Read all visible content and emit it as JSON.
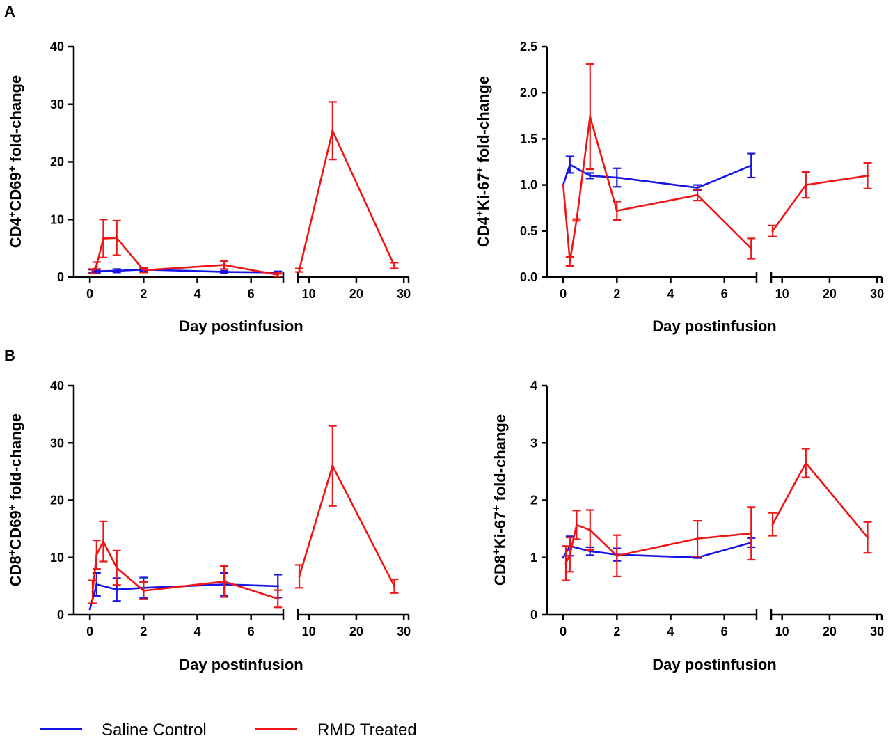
{
  "legend": {
    "series": [
      {
        "name": "Saline Control",
        "color": "#1414e6"
      },
      {
        "name": "RMD Treated",
        "color": "#f01414"
      }
    ]
  },
  "chart_data": [
    {
      "panel": "A",
      "type": "line",
      "ylabel_main": "CD4",
      "ylabel_parts": [
        [
          "CD4",
          ""
        ],
        [
          "+",
          "sup"
        ],
        [
          "CD69",
          ""
        ],
        [
          "+",
          "sup"
        ],
        [
          " fold-change",
          ""
        ]
      ],
      "xlabel": "Day postinfusion",
      "ylim": [
        0,
        40
      ],
      "yticks": [
        "0",
        "10",
        "20",
        "30",
        "40"
      ],
      "ytick_values": [
        0,
        10,
        20,
        30,
        40
      ],
      "x_segments": [
        {
          "range": [
            -0.6,
            7.2
          ],
          "ticks": [
            0,
            2,
            4,
            6
          ],
          "tick_labels": [
            "0",
            "2",
            "4",
            "6"
          ]
        },
        {
          "range": [
            7.7,
            31
          ],
          "ticks": [
            10,
            20,
            30
          ],
          "tick_labels": [
            "10",
            "20",
            "30"
          ]
        }
      ],
      "series": [
        {
          "name": "Saline Control",
          "color": "#1414e6",
          "lines": [
            {
              "x": [
                0.1,
                0.25,
                1,
                2,
                5,
                7
              ],
              "y": [
                1.0,
                1.0,
                1.1,
                1.3,
                0.9,
                0.8
              ],
              "err": [
                0.3,
                0.3,
                0.3,
                0.3,
                0.2,
                0.2
              ]
            }
          ]
        },
        {
          "name": "RMD Treated",
          "color": "#f01414",
          "lines": [
            {
              "x": [
                0.1,
                0.25,
                0.5,
                1,
                2,
                5,
                7
              ],
              "y": [
                1.0,
                2.0,
                6.7,
                6.8,
                1.2,
                2.1,
                0.4
              ],
              "err": [
                0.4,
                0.6,
                3.3,
                3.0,
                0.4,
                0.7,
                0.3
              ]
            },
            {
              "x": [
                8,
                15,
                28
              ],
              "y": [
                1.2,
                25.4,
                2.0
              ],
              "err": [
                0.3,
                5.0,
                0.5
              ]
            }
          ]
        }
      ]
    },
    {
      "panel": "",
      "type": "line",
      "ylabel_parts": [
        [
          "CD4",
          ""
        ],
        [
          "+",
          "sup"
        ],
        [
          "Ki-67",
          ""
        ],
        [
          "+",
          "sup"
        ],
        [
          " fold-change",
          ""
        ]
      ],
      "xlabel": "Day postinfusion",
      "ylim": [
        0,
        2.5
      ],
      "yticks": [
        "0.0",
        "0.5",
        "1.0",
        "1.5",
        "2.0",
        "2.5"
      ],
      "ytick_values": [
        0,
        0.5,
        1.0,
        1.5,
        2.0,
        2.5
      ],
      "x_segments": [
        {
          "range": [
            -0.6,
            7.2
          ],
          "ticks": [
            0,
            2,
            4,
            6
          ],
          "tick_labels": [
            "0",
            "2",
            "4",
            "6"
          ]
        },
        {
          "range": [
            7.7,
            31
          ],
          "ticks": [
            10,
            20,
            30
          ],
          "tick_labels": [
            "10",
            "20",
            "30"
          ]
        }
      ],
      "series": [
        {
          "name": "Saline Control",
          "color": "#1414e6",
          "lines": [
            {
              "x": [
                0,
                0.25,
                1,
                2,
                5,
                7
              ],
              "y": [
                1.0,
                1.22,
                1.1,
                1.08,
                0.97,
                1.21
              ],
              "err": [
                0,
                0.09,
                0.03,
                0.1,
                0.03,
                0.13
              ]
            }
          ]
        },
        {
          "name": "RMD Treated",
          "color": "#f01414",
          "lines": [
            {
              "x": [
                0,
                0.25,
                0.5,
                1,
                2,
                5,
                7
              ],
              "y": [
                1.0,
                0.17,
                0.62,
                1.74,
                0.72,
                0.89,
                0.31
              ],
              "err": [
                0,
                0.05,
                0.01,
                0.57,
                0.1,
                0.06,
                0.11
              ]
            },
            {
              "x": [
                8,
                15,
                28
              ],
              "y": [
                0.5,
                1.0,
                1.1
              ],
              "err": [
                0.06,
                0.14,
                0.14
              ]
            }
          ]
        }
      ]
    },
    {
      "panel": "B",
      "type": "line",
      "ylabel_parts": [
        [
          "CD8",
          ""
        ],
        [
          "+",
          "sup"
        ],
        [
          "CD69",
          ""
        ],
        [
          "+",
          "sup"
        ],
        [
          " fold-change",
          ""
        ]
      ],
      "xlabel": "Day postinfusion",
      "ylim": [
        0,
        40
      ],
      "yticks": [
        "0",
        "10",
        "20",
        "30",
        "40"
      ],
      "ytick_values": [
        0,
        10,
        20,
        30,
        40
      ],
      "x_segments": [
        {
          "range": [
            -0.6,
            7.2
          ],
          "ticks": [
            0,
            2,
            4,
            6
          ],
          "tick_labels": [
            "0",
            "2",
            "4",
            "6"
          ]
        },
        {
          "range": [
            7.7,
            31
          ],
          "ticks": [
            10,
            20,
            30
          ],
          "tick_labels": [
            "10",
            "20",
            "30"
          ]
        }
      ],
      "series": [
        {
          "name": "Saline Control",
          "color": "#1414e6",
          "lines": [
            {
              "x": [
                0,
                0.25,
                1,
                2,
                5,
                7
              ],
              "y": [
                1.0,
                5.3,
                4.4,
                4.7,
                5.3,
                5.0
              ],
              "err": [
                0,
                2.0,
                2.0,
                1.8,
                2.0,
                2.0
              ]
            }
          ]
        },
        {
          "name": "RMD Treated",
          "color": "#f01414",
          "lines": [
            {
              "x": [
                0.1,
                0.25,
                0.5,
                1,
                2,
                5,
                7
              ],
              "y": [
                4.0,
                10.5,
                12.8,
                8.2,
                4.2,
                5.8,
                2.8
              ],
              "err": [
                2.0,
                2.5,
                3.5,
                3.0,
                1.5,
                2.7,
                1.5
              ]
            },
            {
              "x": [
                8,
                15,
                28
              ],
              "y": [
                6.7,
                26.0,
                5.0
              ],
              "err": [
                2.0,
                7.0,
                1.2
              ]
            }
          ]
        }
      ]
    },
    {
      "panel": "",
      "type": "line",
      "ylabel_parts": [
        [
          "CD8",
          ""
        ],
        [
          "+",
          "sup"
        ],
        [
          "Ki-67",
          ""
        ],
        [
          "+",
          "sup"
        ],
        [
          " fold-change",
          ""
        ]
      ],
      "xlabel": "Day postinfusion",
      "ylim": [
        0,
        4
      ],
      "yticks": [
        "0",
        "1",
        "2",
        "3",
        "4"
      ],
      "ytick_values": [
        0,
        1,
        2,
        3,
        4
      ],
      "x_segments": [
        {
          "range": [
            -0.6,
            7.2
          ],
          "ticks": [
            0,
            2,
            4,
            6
          ],
          "tick_labels": [
            "0",
            "2",
            "4",
            "6"
          ]
        },
        {
          "range": [
            7.7,
            31
          ],
          "ticks": [
            10,
            20,
            30
          ],
          "tick_labels": [
            "10",
            "20",
            "30"
          ]
        }
      ],
      "series": [
        {
          "name": "Saline Control",
          "color": "#1414e6",
          "lines": [
            {
              "x": [
                0,
                0.25,
                1,
                2,
                5,
                7
              ],
              "y": [
                1.0,
                1.2,
                1.11,
                1.05,
                1.0,
                1.26
              ],
              "err": [
                0,
                0.17,
                0.07,
                0.11,
                0.01,
                0.08
              ]
            }
          ]
        },
        {
          "name": "RMD Treated",
          "color": "#f01414",
          "lines": [
            {
              "x": [
                0.1,
                0.25,
                0.5,
                1,
                2,
                5,
                7
              ],
              "y": [
                0.9,
                1.05,
                1.57,
                1.48,
                1.03,
                1.33,
                1.42
              ],
              "err": [
                0.3,
                0.3,
                0.25,
                0.35,
                0.36,
                0.31,
                0.46
              ]
            },
            {
              "x": [
                8,
                15,
                28
              ],
              "y": [
                1.58,
                2.65,
                1.35
              ],
              "err": [
                0.2,
                0.25,
                0.27
              ]
            }
          ]
        }
      ]
    }
  ]
}
